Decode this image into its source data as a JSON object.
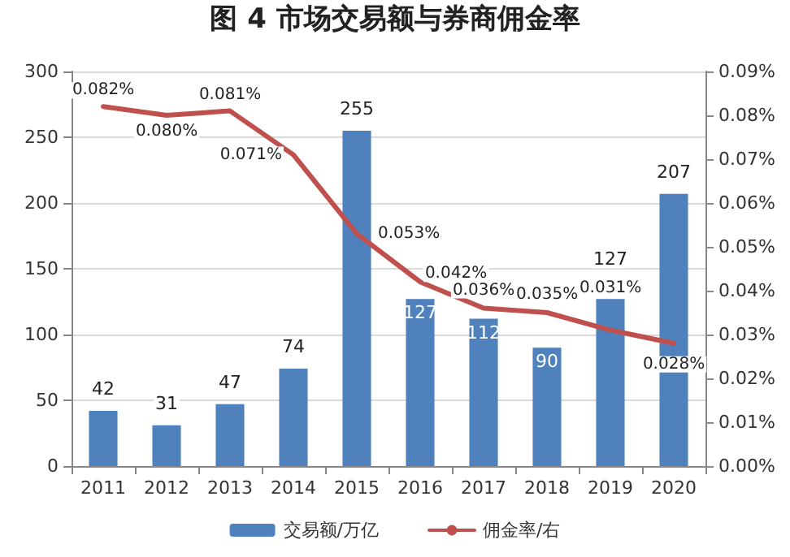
{
  "chart_data": {
    "type": "bar",
    "title": "图 4  市场交易额与券商佣金率",
    "categories": [
      "2011",
      "2012",
      "2013",
      "2014",
      "2015",
      "2016",
      "2017",
      "2018",
      "2019",
      "2020"
    ],
    "series": [
      {
        "name": "交易额/万亿",
        "color": "#4f81bd",
        "values": [
          42,
          31,
          47,
          74,
          255,
          127,
          112,
          90,
          127,
          207
        ],
        "value_labels": [
          "42",
          "31",
          "47",
          "74",
          "255",
          "127",
          "112",
          "90",
          "127",
          "207"
        ]
      },
      {
        "name": "佣金率/右",
        "type": "line",
        "axis": "y2",
        "color": "#c0504d",
        "values": [
          0.082,
          0.08,
          0.081,
          0.071,
          0.053,
          0.042,
          0.036,
          0.035,
          0.031,
          0.028
        ],
        "value_labels": [
          "0.082%",
          "0.080%",
          "0.081%",
          "0.071%",
          "0.053%",
          "0.042%",
          "0.036%",
          "0.035%",
          "0.031%",
          "0.028%"
        ]
      }
    ],
    "ylim": [
      0,
      300
    ],
    "yticks": [
      0,
      50,
      100,
      150,
      200,
      250,
      300
    ],
    "y2lim": [
      0,
      0.09
    ],
    "y2ticks": [
      {
        "value": 0,
        "label": "0.00%"
      },
      {
        "value": 0.01,
        "label": "0.01%"
      },
      {
        "value": 0.02,
        "label": "0.02%"
      },
      {
        "value": 0.03,
        "label": "0.03%"
      },
      {
        "value": 0.04,
        "label": "0.04%"
      },
      {
        "value": 0.05,
        "label": "0.05%"
      },
      {
        "value": 0.06,
        "label": "0.06%"
      },
      {
        "value": 0.07,
        "label": "0.07%"
      },
      {
        "value": 0.08,
        "label": "0.08%"
      },
      {
        "value": 0.09,
        "label": "0.09%"
      }
    ],
    "grid": "y",
    "legend": "bottom",
    "marker": "none",
    "line_style": "solid"
  }
}
